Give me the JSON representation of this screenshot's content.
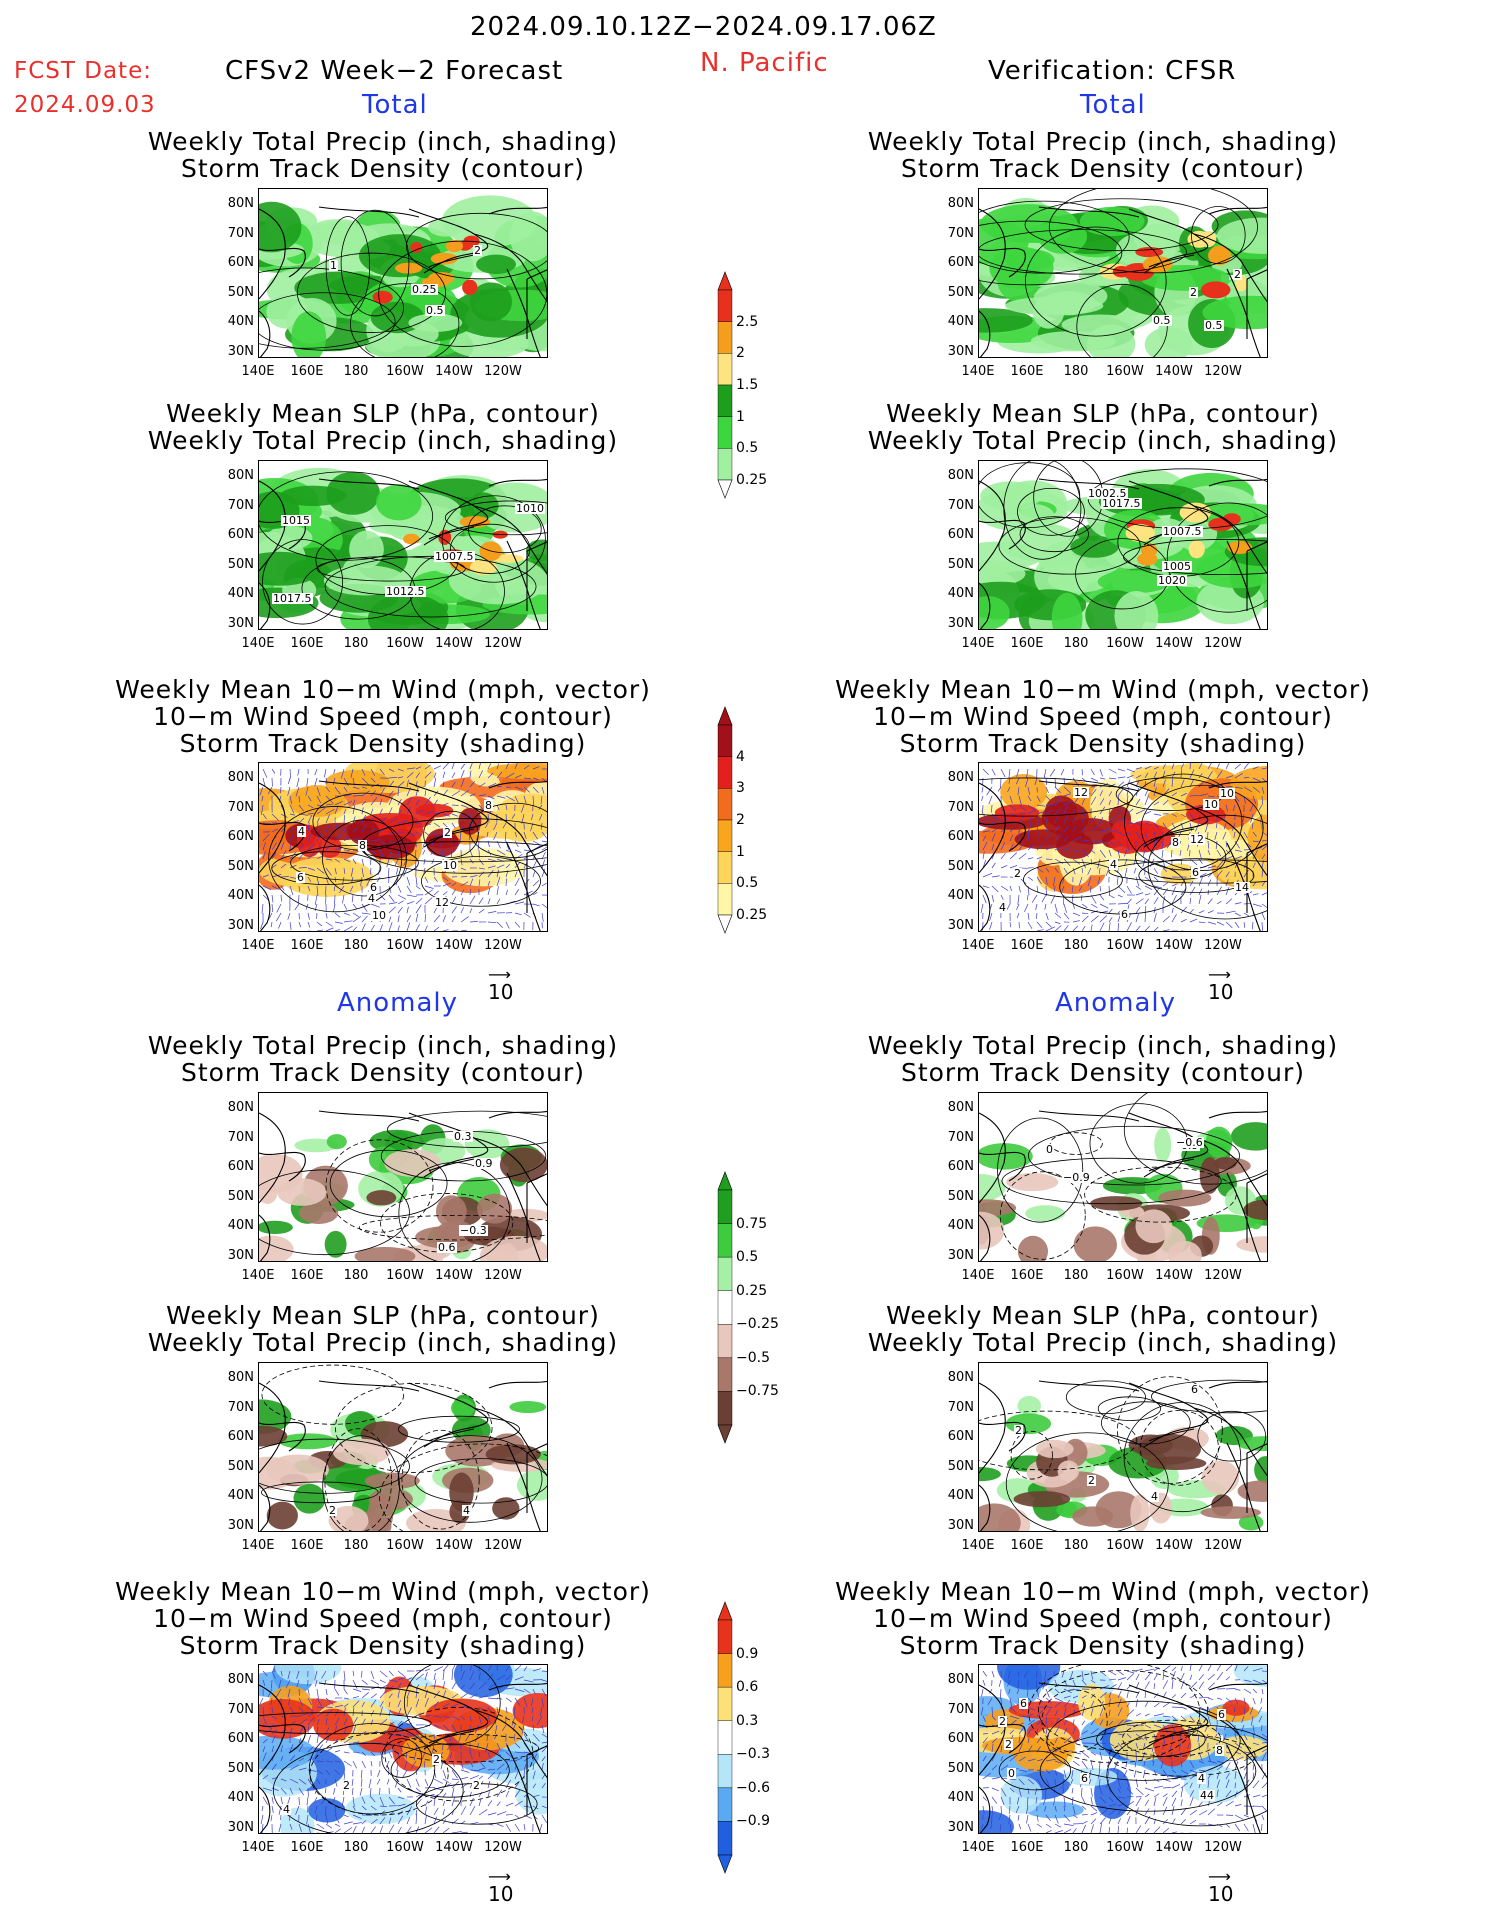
{
  "header": {
    "period": "2024.09.10.12Z−2024.09.17.06Z",
    "region": "N. Pacific",
    "fcst_label": "FCST Date:",
    "fcst_date": "2024.09.03",
    "left_title": "CFSv2 Week−2 Forecast",
    "right_title": "Verification: CFSR"
  },
  "sections": {
    "total": "Total",
    "anomaly": "Anomaly"
  },
  "panel_titles": {
    "precip_storm": [
      "Weekly Total Precip (inch, shading)",
      "Storm Track Density (contour)"
    ],
    "slp_precip": [
      "Weekly Mean SLP (hPa, contour)",
      "Weekly Total Precip (inch, shading)"
    ],
    "wind_storm": [
      "Weekly Mean 10−m Wind (mph, vector)",
      "10−m Wind Speed (mph, contour)",
      "Storm Track Density (shading)"
    ]
  },
  "axes": {
    "lat": [
      "80N",
      "70N",
      "60N",
      "50N",
      "40N",
      "30N"
    ],
    "lon": [
      "140E",
      "160E",
      "180",
      "160W",
      "140W",
      "120W"
    ]
  },
  "vector_ref": "10",
  "colorbars": {
    "precip_total": {
      "levels": [
        "2.5",
        "2",
        "1.5",
        "1",
        "0.5",
        "0.25"
      ],
      "colors": [
        "#e8311c",
        "#f59d1c",
        "#fde480",
        "#1d9f1d",
        "#3ed63e",
        "#a0f0a0"
      ]
    },
    "storm_total": {
      "levels": [
        "4",
        "3",
        "2",
        "1",
        "0.5",
        "0.25"
      ],
      "colors": [
        "#a2101a",
        "#e3201c",
        "#f36b1d",
        "#f9a51e",
        "#fdd55a",
        "#fff6a8"
      ]
    },
    "precip_anom": {
      "levels": [
        "0.75",
        "0.5",
        "0.25",
        "−0.25",
        "−0.5",
        "−0.75"
      ],
      "colors": [
        "#1f9e1f",
        "#3ecb3e",
        "#a6efa6",
        "#ffffff",
        "#e8c7bd",
        "#a9786a",
        "#6b3f33"
      ]
    },
    "storm_anom": {
      "levels": [
        "0.9",
        "0.6",
        "0.3",
        "−0.3",
        "−0.6",
        "−0.9"
      ],
      "colors": [
        "#e8331c",
        "#f6a01d",
        "#fde178",
        "#ffffff",
        "#b4e6f8",
        "#5aaaf2",
        "#1f5fe0"
      ]
    }
  },
  "contour_labels": {
    "p1l": [
      "0.5",
      "0.25",
      "2",
      "1"
    ],
    "p1r": [
      "0.5",
      "2",
      "2",
      "0.5"
    ],
    "p2l": [
      "1007.5",
      "1010",
      "1012.5",
      "1015",
      "1017.5"
    ],
    "p2r": [
      "1005",
      "1002.5",
      "1017.5",
      "1020",
      "1007.5"
    ],
    "p3l": [
      "2",
      "6",
      "4",
      "8",
      "8",
      "10",
      "12",
      "6",
      "4",
      "10"
    ],
    "p3r": [
      "8",
      "6",
      "2",
      "4",
      "4",
      "12",
      "10",
      "10",
      "12",
      "14",
      "6"
    ],
    "p4l": [
      "0.3",
      "0.9",
      "−0.3",
      "0.6"
    ],
    "p4r": [
      "0.9",
      "0",
      "−0.6",
      "−0.9"
    ],
    "p5l": [
      "4",
      "2"
    ],
    "p5r": [
      "6",
      "4",
      "2",
      "2"
    ],
    "p6l": [
      "2",
      "2",
      "4",
      "2"
    ],
    "p6r": [
      "4",
      "2",
      "2",
      "6",
      "0",
      "4",
      "6",
      "6",
      "8",
      "4"
    ]
  }
}
